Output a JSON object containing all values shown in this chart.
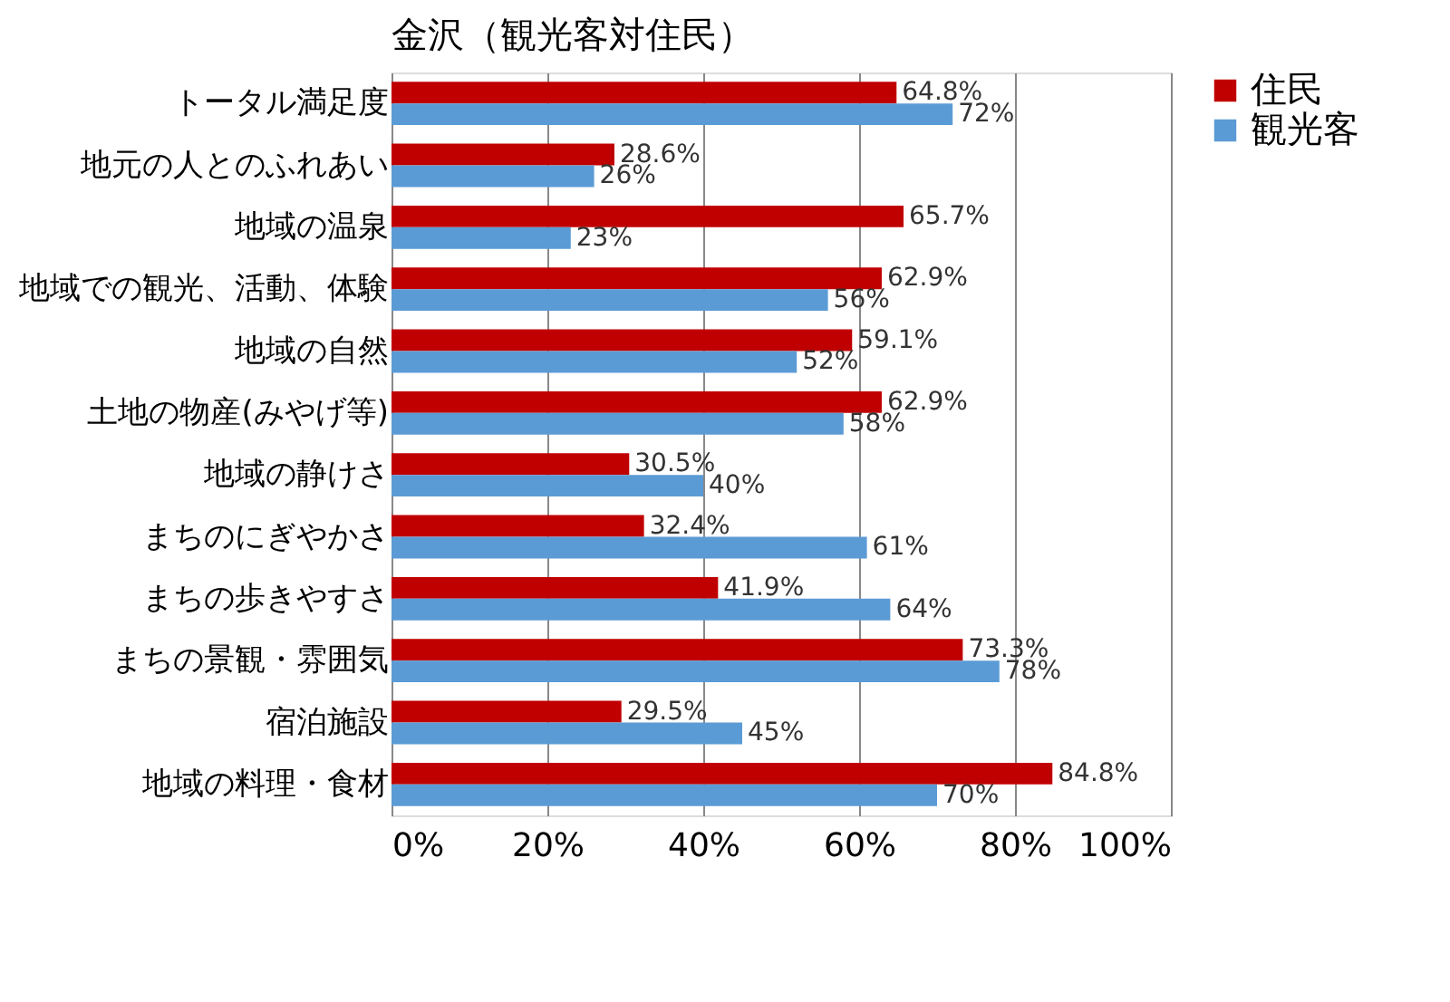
{
  "chart_data": {
    "type": "bar",
    "orientation": "horizontal",
    "title": "金沢（観光客対住民）",
    "categories": [
      "トータル満足度",
      "地元の人とのふれあい",
      "地域の温泉",
      "地域での観光、活動、体験",
      "地域の自然",
      "土地の物産(みやげ等)",
      "地域の静けさ",
      "まちのにぎやかさ",
      "まちの歩きやすさ",
      "まちの景観・雰囲気",
      "宿泊施設",
      "地域の料理・食材"
    ],
    "series": [
      {
        "name": "住民",
        "color": "#c00000",
        "values": [
          64.8,
          28.6,
          65.7,
          62.9,
          59.1,
          62.9,
          30.5,
          32.4,
          41.9,
          73.3,
          29.5,
          84.8
        ],
        "value_labels": [
          "64.8%",
          "28.6%",
          "65.7%",
          "62.9%",
          "59.1%",
          "62.9%",
          "30.5%",
          "32.4%",
          "41.9%",
          "73.3%",
          "29.5%",
          "84.8%"
        ]
      },
      {
        "name": "観光客",
        "color": "#5b9bd5",
        "values": [
          72,
          26,
          23,
          56,
          52,
          58,
          40,
          61,
          64,
          78,
          45,
          70
        ],
        "value_labels": [
          "72%",
          "26%",
          "23%",
          "56%",
          "52%",
          "58%",
          "40%",
          "61%",
          "64%",
          "78%",
          "45%",
          "70%"
        ]
      }
    ],
    "xlim": [
      0,
      100
    ],
    "xticks": [
      {
        "value": 0,
        "label": "0%"
      },
      {
        "value": 20,
        "label": "20%"
      },
      {
        "value": 40,
        "label": "40%"
      },
      {
        "value": 60,
        "label": "60%"
      },
      {
        "value": 80,
        "label": "80%"
      },
      {
        "value": 100,
        "label": "100%"
      }
    ],
    "grid": "x",
    "legend": "right"
  }
}
